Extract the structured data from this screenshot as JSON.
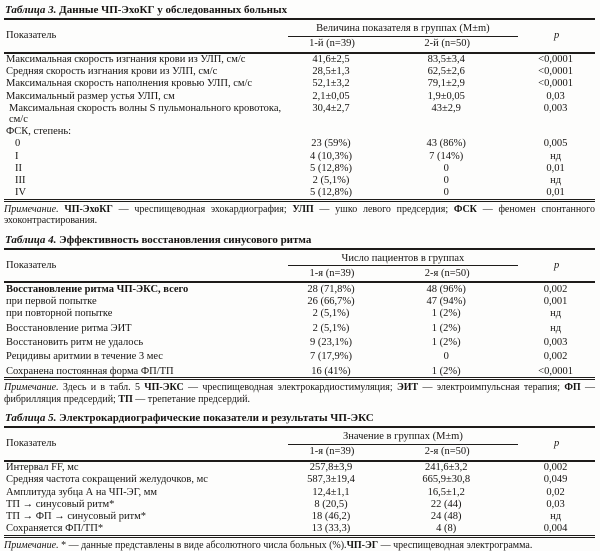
{
  "tables": [
    {
      "title_label": "Таблица 3.",
      "title": "Данные ЧП-ЭхоКГ у обследованных больных",
      "col_header": "Показатель",
      "group_header": "Величина показателя в группах (M±m)",
      "group1": "1-й (n=39)",
      "group2": "2-й (n=50)",
      "p_header": "p",
      "rows": [
        {
          "label": "Максимальная скорость изгнания крови из УЛП, см/с",
          "v1": "41,6±2,5",
          "v2": "83,5±3,4",
          "p": "<0,0001"
        },
        {
          "label": "Средняя скорость изгнания крови из УЛП, см/с",
          "v1": "28,5±1,3",
          "v2": "62,5±2,6",
          "p": "<0,0001"
        },
        {
          "label": "Максимальная скорость наполнения кровью УЛП, см/с",
          "v1": "52,1±3,2",
          "v2": "79,1±2,9",
          "p": "<0,0001"
        },
        {
          "label": "Максимальный размер устья УЛП, см",
          "v1": "2,1±0,05",
          "v2": "1,9±0,05",
          "p": "0,03"
        },
        {
          "label": "Максимальная скорость волны S пульмонального кровотока, см/с",
          "indent": 1,
          "v1": "30,4±2,7",
          "v2": "43±2,9",
          "p": "0,003"
        },
        {
          "label": "ФСК, степень:",
          "v1": "",
          "v2": "",
          "p": ""
        },
        {
          "label": "0",
          "indent": 2,
          "v1": "23 (59%)",
          "v2": "43 (86%)",
          "p": "0,005"
        },
        {
          "label": "I",
          "indent": 2,
          "v1": "4 (10,3%)",
          "v2": "7 (14%)",
          "p": "нд"
        },
        {
          "label": "II",
          "indent": 2,
          "v1": "5 (12,8%)",
          "v2": "0",
          "p": "0,01"
        },
        {
          "label": "III",
          "indent": 2,
          "v1": "2 (5,1%)",
          "v2": "0",
          "p": "нд"
        },
        {
          "label": "IV",
          "indent": 2,
          "v1": "5 (12,8%)",
          "v2": "0",
          "p": "0,01"
        }
      ],
      "note": [
        {
          "t": "Примечание.",
          "i": true
        },
        {
          "t": " "
        },
        {
          "t": "ЧП-ЭхоКГ",
          "b": true
        },
        {
          "t": " — чреспищеводная эхокардиография; "
        },
        {
          "t": "УЛП",
          "b": true
        },
        {
          "t": " — ушко левого предсердия; "
        },
        {
          "t": "ФСК",
          "b": true
        },
        {
          "t": " — феномен спонтанного эхоконтрастирования."
        }
      ]
    },
    {
      "title_label": "Таблица 4.",
      "title": "Эффективность восстановления синусового ритма",
      "col_header": "Показатель",
      "group_header": "Число пациентов в группах",
      "group1": "1-я (n=39)",
      "group2": "2-я (n=50)",
      "p_header": "p",
      "rows": [
        {
          "label": "Восстановление ритма ЧП-ЭКС, всего",
          "bold": true,
          "v1": "28 (71,8%)",
          "v2": "48 (96%)",
          "p": "0,002"
        },
        {
          "label": "при первой попытке",
          "v1": "26 (66,7%)",
          "v2": "47 (94%)",
          "p": "0,001"
        },
        {
          "label": "при повторной попытке",
          "v1": "2 (5,1%)",
          "v2": "1 (2%)",
          "p": "нд"
        },
        {
          "label": "Восстановление ритма ЭИТ",
          "gap": true,
          "v1": "2 (5,1%)",
          "v2": "1 (2%)",
          "p": "нд"
        },
        {
          "label": "Восстановить ритм не удалось",
          "gap": true,
          "v1": "9 (23,1%)",
          "v2": "1 (2%)",
          "p": "0,003"
        },
        {
          "label": "Рецидивы аритмии в течение 3 мес",
          "gap": true,
          "v1": "7 (17,9%)",
          "v2": "0",
          "p": "0,002"
        },
        {
          "label": "Сохранена постоянная форма ФП/ТП",
          "gap": true,
          "v1": "16 (41%)",
          "v2": "1 (2%)",
          "p": "<0,0001"
        }
      ],
      "note": [
        {
          "t": "Примечание.",
          "i": true
        },
        {
          "t": " Здесь и в табл. 5 "
        },
        {
          "t": "ЧП-ЭКС",
          "b": true
        },
        {
          "t": " — чреспищеводная электрокардиостимуляция; "
        },
        {
          "t": "ЭИТ",
          "b": true
        },
        {
          "t": " — электроимпульсная терапия; "
        },
        {
          "t": "ФП",
          "b": true
        },
        {
          "t": " — фибрилляция предсердий; "
        },
        {
          "t": "ТП",
          "b": true
        },
        {
          "t": " — трепетание предсердий."
        }
      ]
    },
    {
      "title_label": "Таблица 5.",
      "title": "Электрокардиографические показатели и результаты ЧП-ЭКС",
      "col_header": "Показатель",
      "group_header": "Значение в группах (M±m)",
      "group1": "1-я (n=39)",
      "group2": "2-я (n=50)",
      "p_header": "p",
      "rows": [
        {
          "label": "Интервал FF, мс",
          "v1": "257,8±3,9",
          "v2": "241,6±3,2",
          "p": "0,002"
        },
        {
          "label": "Средняя частота сокращений желудочков, мс",
          "v1": "587,3±19,4",
          "v2": "665,9±30,8",
          "p": "0,049"
        },
        {
          "label": "Амплитуда зубца А на ЧП-ЭГ, мм",
          "v1": "12,4±1,1",
          "v2": "16,5±1,2",
          "p": "0,02"
        },
        {
          "label": "ТП → синусовый ритм*",
          "v1": "8 (20,5)",
          "v2": "22 (44)",
          "p": "0,03"
        },
        {
          "label": "ТП → ФП → синусовый ритм*",
          "v1": "18 (46,2)",
          "v2": "24 (48)",
          "p": "нд"
        },
        {
          "label": "Сохраняется ФП/ТП*",
          "v1": "13 (33,3)",
          "v2": "4 (8)",
          "p": "0,004"
        }
      ],
      "note": [
        {
          "t": "Примечание.",
          "i": true
        },
        {
          "t": " * — данные представлены в виде абсолютного числа больных (%)."
        },
        {
          "t": "ЧП-ЭГ",
          "b": true
        },
        {
          "t": " — чреспищеводная электрограмма."
        }
      ]
    }
  ]
}
